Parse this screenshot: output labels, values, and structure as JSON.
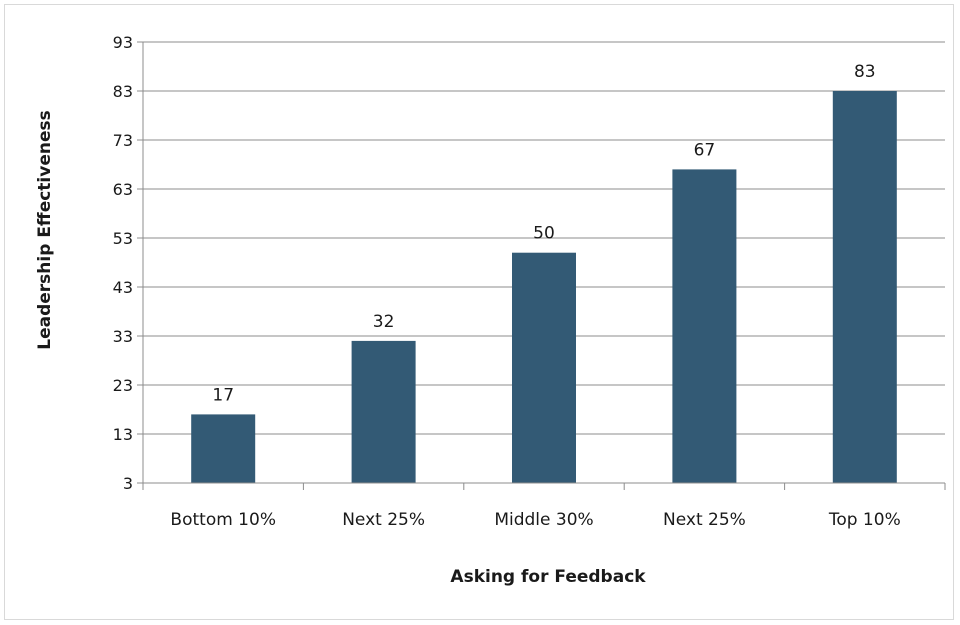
{
  "chart_data": {
    "type": "bar",
    "categories": [
      "Bottom 10%",
      "Next 25%",
      "Middle 30%",
      "Next 25%",
      "Top 10%"
    ],
    "values": [
      17,
      32,
      50,
      67,
      83
    ],
    "data_labels": [
      "17",
      "32",
      "50",
      "67",
      "83"
    ],
    "xlabel": "Asking for Feedback",
    "ylabel": "Leadership Effectiveness",
    "ylim": [
      3,
      93
    ],
    "yticks": [
      3,
      13,
      23,
      33,
      43,
      53,
      63,
      73,
      83,
      93
    ],
    "grid": true,
    "legend": "none",
    "bar_color": "#335a75"
  }
}
